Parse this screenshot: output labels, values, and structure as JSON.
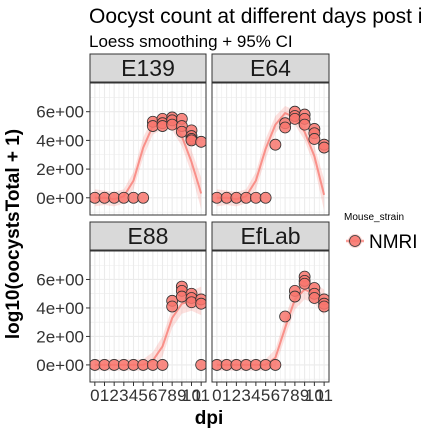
{
  "chart_data": {
    "type": "scatter",
    "title": "Oocyst count at different days post i",
    "subtitle": "Loess smoothing + 95% CI",
    "xlabel": "dpi",
    "ylabel": "log10(oocystsTotal + 1)",
    "xlim": [
      -0.5,
      11.5
    ],
    "ylim": [
      -1.2,
      8.0
    ],
    "x_ticks": [
      0,
      1,
      2,
      3,
      4,
      5,
      6,
      7,
      8,
      9,
      10,
      11
    ],
    "x_tick_labels": [
      "0",
      "1",
      "2",
      "3",
      "4",
      "5",
      "6",
      "7",
      "8",
      "9",
      "10",
      "11"
    ],
    "y_ticks": [
      0,
      2,
      4,
      6
    ],
    "y_tick_labels": [
      "0e+00",
      "2e+00",
      "4e+00",
      "6e+00"
    ],
    "grid": true,
    "legend": {
      "title": "Mouse_strain",
      "position": "right",
      "entries": [
        {
          "name": "NMRI",
          "color": "#F8766D"
        }
      ]
    },
    "colors": {
      "point_fill": "#F8766D",
      "point_stroke": "#333333",
      "smooth_line": "#F8766D",
      "ci_ribbon": "#F8766D",
      "strip_fill": "#D9D9D9",
      "grid": "#EBEBEB"
    },
    "facets": [
      {
        "name": "E139",
        "points": [
          [
            0,
            0
          ],
          [
            1,
            0
          ],
          [
            2,
            0
          ],
          [
            3,
            0
          ],
          [
            4,
            0
          ],
          [
            5,
            0
          ],
          [
            6,
            5.3
          ],
          [
            6,
            5.0
          ],
          [
            7,
            5.5
          ],
          [
            7,
            5.2
          ],
          [
            7,
            5.0
          ],
          [
            8,
            5.6
          ],
          [
            8,
            5.4
          ],
          [
            8,
            5.1
          ],
          [
            9,
            5.5
          ],
          [
            9,
            5.0
          ],
          [
            9,
            4.6
          ],
          [
            10,
            4.7
          ],
          [
            10,
            4.3
          ],
          [
            10,
            4.1
          ],
          [
            10,
            4.0
          ],
          [
            11,
            3.9
          ]
        ],
        "smooth": [
          [
            0,
            0.0
          ],
          [
            1,
            0.0
          ],
          [
            2,
            -0.1
          ],
          [
            3,
            0.1
          ],
          [
            4,
            1.2
          ],
          [
            5,
            3.5
          ],
          [
            6,
            5.0
          ],
          [
            7,
            5.3
          ],
          [
            8,
            5.2
          ],
          [
            9,
            4.3
          ],
          [
            10,
            2.5
          ],
          [
            11,
            0.3
          ]
        ],
        "ci_low": [
          [
            0,
            -0.6
          ],
          [
            1,
            -0.5
          ],
          [
            2,
            -0.6
          ],
          [
            3,
            -0.4
          ],
          [
            4,
            0.6
          ],
          [
            5,
            2.8
          ],
          [
            6,
            4.4
          ],
          [
            7,
            4.8
          ],
          [
            8,
            4.7
          ],
          [
            9,
            3.6
          ],
          [
            10,
            1.7
          ],
          [
            11,
            -0.8
          ]
        ],
        "ci_high": [
          [
            0,
            0.6
          ],
          [
            1,
            0.5
          ],
          [
            2,
            0.4
          ],
          [
            3,
            0.6
          ],
          [
            4,
            1.8
          ],
          [
            5,
            4.2
          ],
          [
            6,
            5.6
          ],
          [
            7,
            5.8
          ],
          [
            8,
            5.7
          ],
          [
            9,
            5.0
          ],
          [
            10,
            3.3
          ],
          [
            11,
            1.4
          ]
        ]
      },
      {
        "name": "E64",
        "points": [
          [
            0,
            0
          ],
          [
            1,
            0
          ],
          [
            2,
            0
          ],
          [
            3,
            0
          ],
          [
            4,
            0
          ],
          [
            5,
            0
          ],
          [
            6,
            3.7
          ],
          [
            7,
            5.2
          ],
          [
            7,
            4.9
          ],
          [
            8,
            6.0
          ],
          [
            8,
            5.7
          ],
          [
            8,
            5.5
          ],
          [
            9,
            5.8
          ],
          [
            9,
            5.5
          ],
          [
            9,
            5.1
          ],
          [
            10,
            4.8
          ],
          [
            10,
            4.5
          ],
          [
            10,
            4.1
          ],
          [
            11,
            3.7
          ],
          [
            11,
            3.5
          ]
        ],
        "smooth": [
          [
            0,
            0.0
          ],
          [
            1,
            0.0
          ],
          [
            2,
            -0.1
          ],
          [
            3,
            0.1
          ],
          [
            4,
            1.2
          ],
          [
            5,
            3.4
          ],
          [
            6,
            5.1
          ],
          [
            7,
            5.9
          ],
          [
            8,
            5.6
          ],
          [
            9,
            4.6
          ],
          [
            10,
            2.9
          ],
          [
            11,
            0.2
          ]
        ],
        "ci_low": [
          [
            0,
            -0.6
          ],
          [
            1,
            -0.5
          ],
          [
            2,
            -0.6
          ],
          [
            3,
            -0.4
          ],
          [
            4,
            0.6
          ],
          [
            5,
            2.7
          ],
          [
            6,
            4.5
          ],
          [
            7,
            5.4
          ],
          [
            8,
            5.1
          ],
          [
            9,
            4.0
          ],
          [
            10,
            2.2
          ],
          [
            11,
            -0.9
          ]
        ],
        "ci_high": [
          [
            0,
            0.6
          ],
          [
            1,
            0.5
          ],
          [
            2,
            0.4
          ],
          [
            3,
            0.6
          ],
          [
            4,
            1.8
          ],
          [
            5,
            4.1
          ],
          [
            6,
            5.7
          ],
          [
            7,
            6.4
          ],
          [
            8,
            6.1
          ],
          [
            9,
            5.2
          ],
          [
            10,
            3.6
          ],
          [
            11,
            1.3
          ]
        ]
      },
      {
        "name": "E88",
        "points": [
          [
            0,
            0
          ],
          [
            1,
            0
          ],
          [
            2,
            0
          ],
          [
            3,
            0
          ],
          [
            4,
            0
          ],
          [
            5,
            0
          ],
          [
            6,
            0
          ],
          [
            7,
            0
          ],
          [
            8,
            4.5
          ],
          [
            8,
            4.1
          ],
          [
            9,
            5.5
          ],
          [
            9,
            5.2
          ],
          [
            9,
            4.8
          ],
          [
            10,
            5.0
          ],
          [
            10,
            4.7
          ],
          [
            10,
            4.4
          ],
          [
            11,
            4.6
          ],
          [
            11,
            4.3
          ],
          [
            11,
            0
          ]
        ],
        "smooth": [
          [
            0,
            0.0
          ],
          [
            1,
            0.0
          ],
          [
            2,
            0.0
          ],
          [
            3,
            0.0
          ],
          [
            4,
            0.0
          ],
          [
            5,
            0.0
          ],
          [
            6,
            0.3
          ],
          [
            7,
            1.3
          ],
          [
            8,
            3.3
          ],
          [
            9,
            4.3
          ],
          [
            10,
            4.5
          ],
          [
            11,
            4.5
          ]
        ],
        "ci_low": [
          [
            0,
            -0.4
          ],
          [
            1,
            -0.4
          ],
          [
            2,
            -0.4
          ],
          [
            3,
            -0.4
          ],
          [
            4,
            -0.4
          ],
          [
            5,
            -0.4
          ],
          [
            6,
            -0.3
          ],
          [
            7,
            0.6
          ],
          [
            8,
            2.6
          ],
          [
            9,
            3.6
          ],
          [
            10,
            3.8
          ],
          [
            11,
            3.5
          ]
        ],
        "ci_high": [
          [
            0,
            0.4
          ],
          [
            1,
            0.4
          ],
          [
            2,
            0.4
          ],
          [
            3,
            0.4
          ],
          [
            4,
            0.4
          ],
          [
            5,
            0.4
          ],
          [
            6,
            0.9
          ],
          [
            7,
            2.0
          ],
          [
            8,
            4.0
          ],
          [
            9,
            5.0
          ],
          [
            10,
            5.2
          ],
          [
            11,
            5.5
          ]
        ]
      },
      {
        "name": "EfLab",
        "points": [
          [
            0,
            0
          ],
          [
            1,
            0
          ],
          [
            2,
            0
          ],
          [
            3,
            0
          ],
          [
            4,
            0
          ],
          [
            5,
            0
          ],
          [
            6,
            0
          ],
          [
            7,
            3.4
          ],
          [
            8,
            5.2
          ],
          [
            8,
            4.8
          ],
          [
            9,
            6.2
          ],
          [
            9,
            5.9
          ],
          [
            9,
            5.7
          ],
          [
            10,
            5.4
          ],
          [
            10,
            5.0
          ],
          [
            10,
            4.7
          ],
          [
            11,
            4.6
          ],
          [
            11,
            4.3
          ],
          [
            11,
            4.1
          ]
        ],
        "smooth": [
          [
            0,
            0.0
          ],
          [
            1,
            0.0
          ],
          [
            2,
            0.0
          ],
          [
            3,
            0.0
          ],
          [
            4,
            0.0
          ],
          [
            5,
            0.0
          ],
          [
            6,
            0.5
          ],
          [
            7,
            2.6
          ],
          [
            8,
            4.6
          ],
          [
            9,
            5.3
          ],
          [
            10,
            5.0
          ],
          [
            11,
            4.4
          ]
        ],
        "ci_low": [
          [
            0,
            -0.4
          ],
          [
            1,
            -0.4
          ],
          [
            2,
            -0.4
          ],
          [
            3,
            -0.4
          ],
          [
            4,
            -0.4
          ],
          [
            5,
            -0.4
          ],
          [
            6,
            -0.1
          ],
          [
            7,
            1.9
          ],
          [
            8,
            3.9
          ],
          [
            9,
            4.6
          ],
          [
            10,
            4.3
          ],
          [
            11,
            3.5
          ]
        ],
        "ci_high": [
          [
            0,
            0.4
          ],
          [
            1,
            0.4
          ],
          [
            2,
            0.4
          ],
          [
            3,
            0.4
          ],
          [
            4,
            0.4
          ],
          [
            5,
            0.4
          ],
          [
            6,
            1.1
          ],
          [
            7,
            3.3
          ],
          [
            8,
            5.3
          ],
          [
            9,
            6.0
          ],
          [
            10,
            5.7
          ],
          [
            11,
            5.3
          ]
        ]
      }
    ]
  }
}
